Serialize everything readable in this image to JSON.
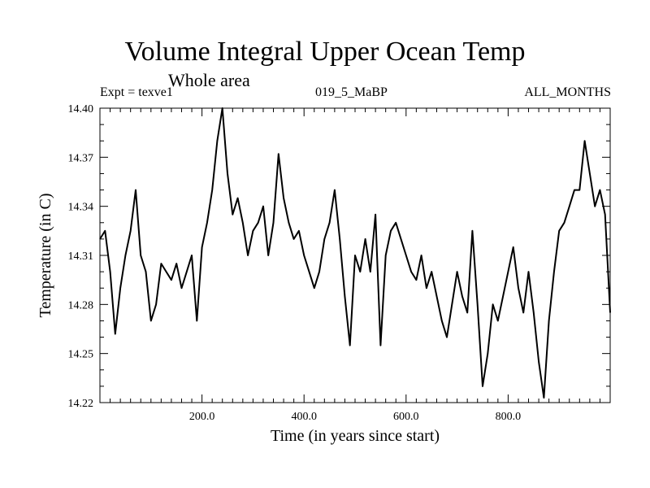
{
  "chart_data": {
    "type": "line",
    "title": "Volume Integral Upper Ocean Temp",
    "subtitle": "Whole area",
    "header_left": "Expt = texve1",
    "header_center": "019_5_MaBP",
    "header_right": "ALL_MONTHS",
    "xlabel": "Time (in years since start)",
    "ylabel": "Temperature (in C)",
    "xlim": [
      0,
      1000
    ],
    "ylim": [
      14.22,
      14.4
    ],
    "xticks": [
      200,
      400,
      600,
      800
    ],
    "xtick_labels": [
      "200.0",
      "400.0",
      "600.0",
      "800.0"
    ],
    "yticks": [
      14.22,
      14.25,
      14.28,
      14.31,
      14.34,
      14.37,
      14.4
    ],
    "ytick_labels": [
      "14.22",
      "14.25",
      "14.28",
      "14.31",
      "14.34",
      "14.37",
      "14.40"
    ],
    "grid": false,
    "series": [
      {
        "name": "texve1",
        "x": [
          0,
          10,
          20,
          30,
          40,
          50,
          60,
          70,
          80,
          90,
          100,
          110,
          120,
          130,
          140,
          150,
          160,
          170,
          180,
          190,
          200,
          210,
          220,
          230,
          240,
          250,
          260,
          270,
          280,
          290,
          300,
          310,
          320,
          330,
          340,
          350,
          360,
          370,
          380,
          390,
          400,
          410,
          420,
          430,
          440,
          450,
          460,
          470,
          480,
          490,
          500,
          510,
          520,
          530,
          540,
          550,
          560,
          570,
          580,
          590,
          600,
          610,
          620,
          630,
          640,
          650,
          660,
          670,
          680,
          690,
          700,
          710,
          720,
          730,
          740,
          750,
          760,
          770,
          780,
          790,
          800,
          810,
          820,
          830,
          840,
          850,
          860,
          870,
          880,
          890,
          900,
          910,
          920,
          930,
          940,
          950,
          960,
          970,
          980,
          990,
          1000
        ],
        "values": [
          14.32,
          14.325,
          14.3,
          14.262,
          14.29,
          14.31,
          14.325,
          14.35,
          14.31,
          14.3,
          14.27,
          14.28,
          14.305,
          14.3,
          14.295,
          14.305,
          14.29,
          14.3,
          14.31,
          14.27,
          14.315,
          14.33,
          14.35,
          14.38,
          14.4,
          14.36,
          14.335,
          14.345,
          14.33,
          14.31,
          14.325,
          14.33,
          14.34,
          14.31,
          14.33,
          14.372,
          14.345,
          14.33,
          14.32,
          14.325,
          14.31,
          14.3,
          14.29,
          14.3,
          14.32,
          14.33,
          14.35,
          14.32,
          14.285,
          14.255,
          14.31,
          14.3,
          14.32,
          14.3,
          14.335,
          14.255,
          14.31,
          14.325,
          14.33,
          14.32,
          14.31,
          14.3,
          14.295,
          14.31,
          14.29,
          14.3,
          14.285,
          14.27,
          14.26,
          14.28,
          14.3,
          14.285,
          14.275,
          14.325,
          14.28,
          14.23,
          14.25,
          14.28,
          14.27,
          14.285,
          14.3,
          14.315,
          14.29,
          14.275,
          14.3,
          14.275,
          14.245,
          14.223,
          14.27,
          14.3,
          14.325,
          14.33,
          14.34,
          14.35,
          14.35,
          14.38,
          14.36,
          14.34,
          14.35,
          14.335,
          14.275
        ]
      }
    ]
  }
}
